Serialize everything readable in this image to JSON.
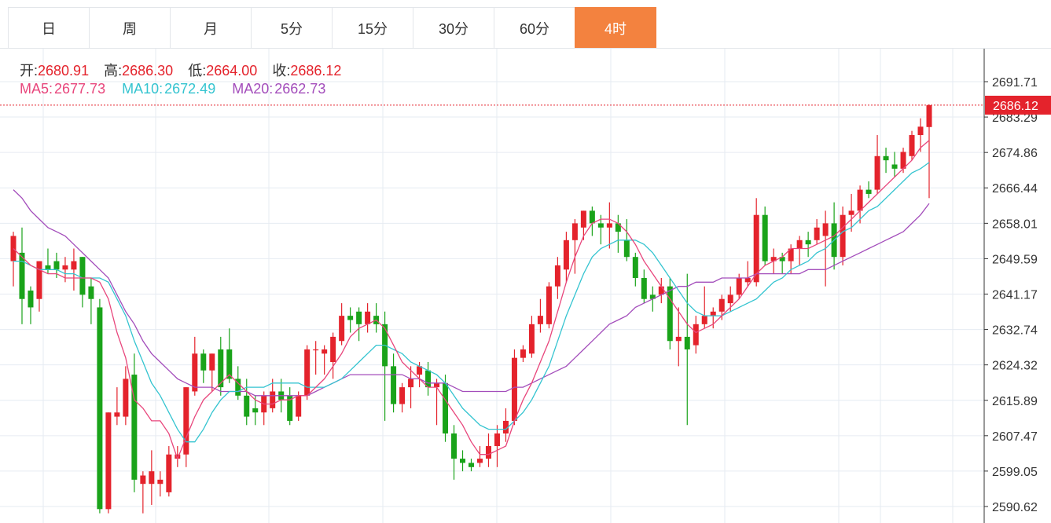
{
  "tabs": [
    {
      "label": "日",
      "active": false
    },
    {
      "label": "周",
      "active": false
    },
    {
      "label": "月",
      "active": false
    },
    {
      "label": "5分",
      "active": false
    },
    {
      "label": "15分",
      "active": false
    },
    {
      "label": "30分",
      "active": false
    },
    {
      "label": "60分",
      "active": false
    },
    {
      "label": "4时",
      "active": true
    }
  ],
  "ohlc_legend": {
    "open_label": "开:",
    "open": "2680.91",
    "high_label": "高:",
    "high": "2686.30",
    "low_label": "低:",
    "low": "2664.00",
    "close_label": "收:",
    "close": "2686.12"
  },
  "ma_legend": {
    "ma5_label": "MA5:",
    "ma5": "2677.73",
    "ma10_label": "MA10:",
    "ma10": "2672.49",
    "ma20_label": "MA20:",
    "ma20": "2662.73"
  },
  "colors": {
    "up": "#e4232c",
    "down": "#1aa31a",
    "ma5": "#e8467c",
    "ma10": "#34c4d0",
    "ma20": "#a34dbb",
    "grid": "#e6ebf2",
    "active_tab": "#f3823f"
  },
  "price_tag": "2686.12",
  "chart_data": {
    "type": "candlestick",
    "y_ticks": [
      "2691.71",
      "2683.29",
      "2674.86",
      "2666.44",
      "2658.01",
      "2649.59",
      "2641.17",
      "2632.74",
      "2624.32",
      "2615.89",
      "2607.47",
      "2599.05",
      "2590.62"
    ],
    "ylim": [
      2590.62,
      2691.71
    ],
    "last_price": 2686.12,
    "candles": [
      [
        2649,
        2656,
        2643,
        2655
      ],
      [
        2651,
        2657,
        2634,
        2640
      ],
      [
        2642,
        2643,
        2634,
        2638
      ],
      [
        2640,
        2649,
        2637,
        2649
      ],
      [
        2648,
        2652,
        2646,
        2647
      ],
      [
        2649,
        2651,
        2645,
        2647
      ],
      [
        2647,
        2650,
        2644,
        2648
      ],
      [
        2647,
        2652,
        2642,
        2649
      ],
      [
        2650,
        2650,
        2638,
        2641
      ],
      [
        2643,
        2645,
        2634,
        2640
      ],
      [
        2638,
        2640,
        2589,
        2590
      ],
      [
        2590,
        2613,
        2589,
        2613
      ],
      [
        2612,
        2619,
        2610,
        2613
      ],
      [
        2612,
        2624,
        2610,
        2621
      ],
      [
        2622,
        2627,
        2594,
        2597
      ],
      [
        2596,
        2599,
        2589,
        2598
      ],
      [
        2596,
        2604,
        2591,
        2599
      ],
      [
        2596,
        2599,
        2593,
        2597
      ],
      [
        2594,
        2605,
        2593,
        2603
      ],
      [
        2602,
        2605,
        2600,
        2603
      ],
      [
        2603,
        2619,
        2600,
        2619
      ],
      [
        2618,
        2631,
        2617,
        2627
      ],
      [
        2627,
        2628,
        2620,
        2623
      ],
      [
        2623,
        2627,
        2618,
        2627
      ],
      [
        2628,
        2631,
        2617,
        2619
      ],
      [
        2628,
        2633,
        2620,
        2621
      ],
      [
        2621,
        2624,
        2616,
        2617
      ],
      [
        2617,
        2621,
        2610,
        2612
      ],
      [
        2614,
        2617,
        2610,
        2613
      ],
      [
        2613,
        2618,
        2610,
        2617
      ],
      [
        2614,
        2621,
        2613,
        2618
      ],
      [
        2618,
        2621,
        2613,
        2616
      ],
      [
        2617,
        2619,
        2610,
        2611
      ],
      [
        2612,
        2618,
        2611,
        2617
      ],
      [
        2617,
        2629,
        2616,
        2628
      ],
      [
        2628,
        2630,
        2622,
        2628
      ],
      [
        2627,
        2629,
        2622,
        2628
      ],
      [
        2625,
        2632,
        2621,
        2631
      ],
      [
        2630,
        2639,
        2629,
        2636
      ],
      [
        2636,
        2638,
        2632,
        2635
      ],
      [
        2637,
        2638,
        2630,
        2634
      ],
      [
        2634,
        2639,
        2632,
        2637
      ],
      [
        2636,
        2639,
        2632,
        2634
      ],
      [
        2634,
        2637,
        2611,
        2624
      ],
      [
        2624,
        2627,
        2613,
        2615
      ],
      [
        2615,
        2620,
        2613,
        2619
      ],
      [
        2619,
        2624,
        2614,
        2621
      ],
      [
        2622,
        2625,
        2619,
        2624
      ],
      [
        2623,
        2625,
        2617,
        2619
      ],
      [
        2619,
        2621,
        2610,
        2620
      ],
      [
        2620,
        2622,
        2606,
        2608
      ],
      [
        2608,
        2610,
        2597,
        2602
      ],
      [
        2602,
        2604,
        2599,
        2601
      ],
      [
        2601,
        2602,
        2599,
        2600
      ],
      [
        2601,
        2605,
        2600,
        2602
      ],
      [
        2602,
        2608,
        2600,
        2605
      ],
      [
        2605,
        2610,
        2600,
        2608
      ],
      [
        2608,
        2614,
        2606,
        2611
      ],
      [
        2611,
        2628,
        2610,
        2626
      ],
      [
        2626,
        2629,
        2625,
        2628
      ],
      [
        2627,
        2636,
        2626,
        2634
      ],
      [
        2634,
        2640,
        2632,
        2636
      ],
      [
        2634,
        2644,
        2633,
        2643
      ],
      [
        2643,
        2650,
        2640,
        2648
      ],
      [
        2647,
        2656,
        2644,
        2654
      ],
      [
        2654,
        2659,
        2646,
        2658
      ],
      [
        2657,
        2661,
        2654,
        2661
      ],
      [
        2661,
        2662,
        2655,
        2658
      ],
      [
        2658,
        2660,
        2653,
        2657
      ],
      [
        2657,
        2663,
        2652,
        2658
      ],
      [
        2658,
        2660,
        2651,
        2656
      ],
      [
        2654,
        2659,
        2649,
        2650
      ],
      [
        2650,
        2651,
        2643,
        2645
      ],
      [
        2645,
        2647,
        2639,
        2640
      ],
      [
        2641,
        2643,
        2637,
        2640
      ],
      [
        2641,
        2645,
        2639,
        2643
      ],
      [
        2643,
        2645,
        2628,
        2630
      ],
      [
        2630,
        2638,
        2624,
        2631
      ],
      [
        2631,
        2646,
        2610,
        2628
      ],
      [
        2629,
        2636,
        2627,
        2634
      ],
      [
        2634,
        2643,
        2633,
        2636
      ],
      [
        2636,
        2638,
        2633,
        2637
      ],
      [
        2637,
        2641,
        2635,
        2640
      ],
      [
        2639,
        2643,
        2637,
        2641
      ],
      [
        2641,
        2646,
        2640,
        2645
      ],
      [
        2644,
        2649,
        2643,
        2645
      ],
      [
        2644,
        2664,
        2643,
        2660
      ],
      [
        2660,
        2662,
        2648,
        2649
      ],
      [
        2649,
        2652,
        2646,
        2650
      ],
      [
        2650,
        2651,
        2646,
        2649
      ],
      [
        2649,
        2653,
        2646,
        2652
      ],
      [
        2652,
        2655,
        2648,
        2654
      ],
      [
        2654,
        2656,
        2650,
        2653
      ],
      [
        2654,
        2659,
        2653,
        2657
      ],
      [
        2655,
        2661,
        2643,
        2658
      ],
      [
        2658,
        2663,
        2647,
        2650
      ],
      [
        2650,
        2662,
        2648,
        2660
      ],
      [
        2660,
        2665,
        2656,
        2661
      ],
      [
        2661,
        2667,
        2658,
        2666
      ],
      [
        2666,
        2668,
        2664,
        2665
      ],
      [
        2666,
        2679,
        2665,
        2674
      ],
      [
        2674,
        2676,
        2670,
        2673
      ],
      [
        2672,
        2675,
        2669,
        2671
      ],
      [
        2671,
        2676,
        2670,
        2675
      ],
      [
        2674,
        2680,
        2673,
        2679
      ],
      [
        2679,
        2683,
        2675,
        2681
      ],
      [
        2680.91,
        2686.3,
        2664.0,
        2686.12
      ]
    ],
    "ma5": [
      2652,
      2650,
      2648,
      2647,
      2646,
      2646,
      2645,
      2645,
      2645,
      2645,
      2644,
      2640,
      2632,
      2626,
      2616,
      2614,
      2611,
      2611,
      2608,
      2602,
      2607,
      2612,
      2616,
      2618,
      2620,
      2622,
      2620,
      2618,
      2616,
      2615,
      2615,
      2616,
      2616,
      2617,
      2617,
      2619,
      2621,
      2624,
      2627,
      2631,
      2633,
      2634,
      2635,
      2633,
      2629,
      2625,
      2623,
      2621,
      2619,
      2619,
      2616,
      2613,
      2610,
      2606,
      2603,
      2603,
      2604,
      2605,
      2611,
      2616,
      2620,
      2625,
      2630,
      2637,
      2644,
      2650,
      2655,
      2658,
      2659,
      2659,
      2658,
      2656,
      2653,
      2649,
      2646,
      2643,
      2640,
      2637,
      2634,
      2632,
      2633,
      2634,
      2636,
      2638,
      2640,
      2643,
      2646,
      2648,
      2649,
      2650,
      2652,
      2652,
      2652,
      2653,
      2654,
      2655,
      2657,
      2659,
      2661,
      2663,
      2665,
      2667,
      2669,
      2671,
      2673,
      2676,
      2677.73
    ],
    "ma10": [
      2649,
      2649,
      2648,
      2647,
      2647,
      2647,
      2646,
      2646,
      2645,
      2645,
      2645,
      2644,
      2640,
      2636,
      2630,
      2625,
      2620,
      2617,
      2613,
      2609,
      2606,
      2606,
      2609,
      2613,
      2616,
      2618,
      2618,
      2619,
      2619,
      2619,
      2620,
      2620,
      2620,
      2620,
      2619,
      2619,
      2619,
      2620,
      2621,
      2623,
      2625,
      2627,
      2629,
      2629,
      2628,
      2627,
      2625,
      2624,
      2623,
      2622,
      2620,
      2617,
      2614,
      2612,
      2610,
      2609,
      2609,
      2609,
      2611,
      2613,
      2616,
      2620,
      2624,
      2630,
      2636,
      2641,
      2646,
      2650,
      2652,
      2653,
      2654,
      2654,
      2654,
      2653,
      2651,
      2648,
      2645,
      2642,
      2639,
      2637,
      2636,
      2636,
      2636,
      2637,
      2638,
      2639,
      2640,
      2642,
      2644,
      2645,
      2647,
      2648,
      2649,
      2651,
      2652,
      2654,
      2656,
      2657,
      2659,
      2661,
      2662,
      2664,
      2666,
      2668,
      2670,
      2671,
      2672.49
    ],
    "ma20": [
      2666,
      2664,
      2661,
      2659,
      2657,
      2656,
      2655,
      2653,
      2651,
      2649,
      2647,
      2645,
      2641,
      2637,
      2634,
      2630,
      2627,
      2625,
      2623,
      2621,
      2620,
      2619,
      2619,
      2619,
      2618,
      2618,
      2618,
      2618,
      2617,
      2617,
      2617,
      2617,
      2617,
      2617,
      2617,
      2618,
      2619,
      2620,
      2621,
      2622,
      2622,
      2622,
      2622,
      2622,
      2622,
      2622,
      2621,
      2621,
      2620,
      2620,
      2620,
      2619,
      2618,
      2618,
      2618,
      2618,
      2618,
      2618,
      2619,
      2619,
      2620,
      2621,
      2622,
      2623,
      2624,
      2626,
      2628,
      2630,
      2632,
      2634,
      2635,
      2636,
      2638,
      2639,
      2640,
      2641,
      2642,
      2643,
      2643,
      2644,
      2644,
      2644,
      2645,
      2645,
      2645,
      2645,
      2646,
      2646,
      2646,
      2646,
      2646,
      2646,
      2647,
      2647,
      2647,
      2648,
      2649,
      2650,
      2651,
      2652,
      2653,
      2654,
      2655,
      2656,
      2658,
      2660,
      2662.73
    ]
  }
}
